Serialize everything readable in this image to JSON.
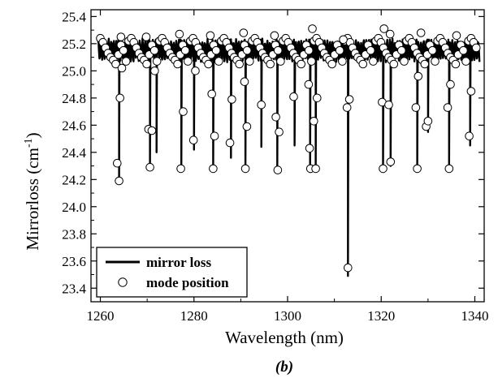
{
  "panel_label": "(b)",
  "chart_data": {
    "type": "line",
    "xlabel": "Wavelength (nm)",
    "ylabel_main": "Mirrorloss (cm",
    "ylabel_sup": "-1",
    "ylabel_close": ")",
    "xlim": [
      1258,
      1342
    ],
    "ylim": [
      23.3,
      25.45
    ],
    "x_ticks": [
      1260,
      1280,
      1300,
      1320,
      1340
    ],
    "x_tick_labels": [
      "1260",
      "1280",
      "1300",
      "1320",
      "1340"
    ],
    "y_ticks": [
      23.4,
      23.6,
      23.8,
      24.0,
      24.2,
      24.4,
      24.6,
      24.8,
      25.0,
      25.2,
      25.4
    ],
    "y_tick_labels": [
      "23.4",
      "23.6",
      "23.8",
      "24.0",
      "24.2",
      "24.4",
      "24.6",
      "24.8",
      "25.0",
      "25.2",
      "25.4"
    ],
    "grid": false,
    "legend_position": "bottom-left",
    "series": [
      {
        "name": "mirror loss",
        "style": "line",
        "color": "#000000"
      },
      {
        "name": "mode position",
        "style": "open-circle",
        "color": "#000000"
      }
    ],
    "baseline": 25.15,
    "dips": [
      {
        "x": 1264.0,
        "min": 24.18
      },
      {
        "x": 1270.6,
        "min": 24.29
      },
      {
        "x": 1272.0,
        "min": 24.4
      },
      {
        "x": 1277.3,
        "min": 24.28
      },
      {
        "x": 1280.0,
        "min": 24.42
      },
      {
        "x": 1284.1,
        "min": 24.28
      },
      {
        "x": 1287.9,
        "min": 24.36
      },
      {
        "x": 1291.0,
        "min": 24.28
      },
      {
        "x": 1294.4,
        "min": 24.44
      },
      {
        "x": 1297.8,
        "min": 24.27
      },
      {
        "x": 1301.5,
        "min": 24.45
      },
      {
        "x": 1304.8,
        "min": 24.28
      },
      {
        "x": 1306.0,
        "min": 24.27
      },
      {
        "x": 1312.9,
        "min": 23.49
      },
      {
        "x": 1320.4,
        "min": 24.28
      },
      {
        "x": 1322.0,
        "min": 24.3
      },
      {
        "x": 1327.7,
        "min": 24.28
      },
      {
        "x": 1330.0,
        "min": 24.55
      },
      {
        "x": 1334.5,
        "min": 24.28
      },
      {
        "x": 1339.0,
        "min": 24.45
      }
    ],
    "mode_positions_on_dips": [
      [
        1264.0,
        24.19
      ],
      [
        1263.6,
        24.32
      ],
      [
        1264.2,
        24.8
      ],
      [
        1264.6,
        25.02
      ],
      [
        1270.3,
        24.57
      ],
      [
        1270.6,
        24.29
      ],
      [
        1271.0,
        24.56
      ],
      [
        1271.6,
        25.0
      ],
      [
        1277.2,
        24.28
      ],
      [
        1277.7,
        24.7
      ],
      [
        1279.9,
        24.49
      ],
      [
        1280.3,
        25.0
      ],
      [
        1283.8,
        24.83
      ],
      [
        1284.1,
        24.28
      ],
      [
        1284.4,
        24.52
      ],
      [
        1287.7,
        24.47
      ],
      [
        1288.1,
        24.79
      ],
      [
        1290.8,
        24.92
      ],
      [
        1291.0,
        24.28
      ],
      [
        1291.3,
        24.59
      ],
      [
        1294.4,
        24.75
      ],
      [
        1297.5,
        24.66
      ],
      [
        1297.9,
        24.27
      ],
      [
        1298.2,
        24.55
      ],
      [
        1301.3,
        24.81
      ],
      [
        1304.5,
        24.9
      ],
      [
        1304.7,
        24.43
      ],
      [
        1304.9,
        24.28
      ],
      [
        1305.6,
        24.63
      ],
      [
        1306.0,
        24.28
      ],
      [
        1306.3,
        24.8
      ],
      [
        1312.7,
        24.73
      ],
      [
        1312.9,
        23.55
      ],
      [
        1313.2,
        24.79
      ],
      [
        1320.2,
        24.77
      ],
      [
        1320.4,
        24.28
      ],
      [
        1321.6,
        24.75
      ],
      [
        1322.0,
        24.33
      ],
      [
        1327.4,
        24.73
      ],
      [
        1327.7,
        24.28
      ],
      [
        1327.9,
        24.96
      ],
      [
        1329.6,
        24.59
      ],
      [
        1330.0,
        24.63
      ],
      [
        1334.2,
        24.73
      ],
      [
        1334.5,
        24.28
      ],
      [
        1334.8,
        24.9
      ],
      [
        1338.8,
        24.52
      ],
      [
        1339.2,
        24.85
      ]
    ],
    "mode_positions_baseline_y": [
      25.24,
      25.21,
      25.17,
      25.13,
      25.1,
      25.08,
      25.05,
      25.12,
      25.19,
      25.15,
      25.07,
      25.22
    ],
    "mode_positions_high": [
      [
        1264.4,
        25.25
      ],
      [
        1269.8,
        25.25
      ],
      [
        1276.9,
        25.27
      ],
      [
        1283.5,
        25.26
      ],
      [
        1290.6,
        25.28
      ],
      [
        1297.2,
        25.26
      ],
      [
        1305.3,
        25.31
      ],
      [
        1311.9,
        25.23
      ],
      [
        1320.6,
        25.31
      ],
      [
        1321.9,
        25.27
      ],
      [
        1328.5,
        25.28
      ],
      [
        1336.1,
        25.26
      ]
    ]
  }
}
